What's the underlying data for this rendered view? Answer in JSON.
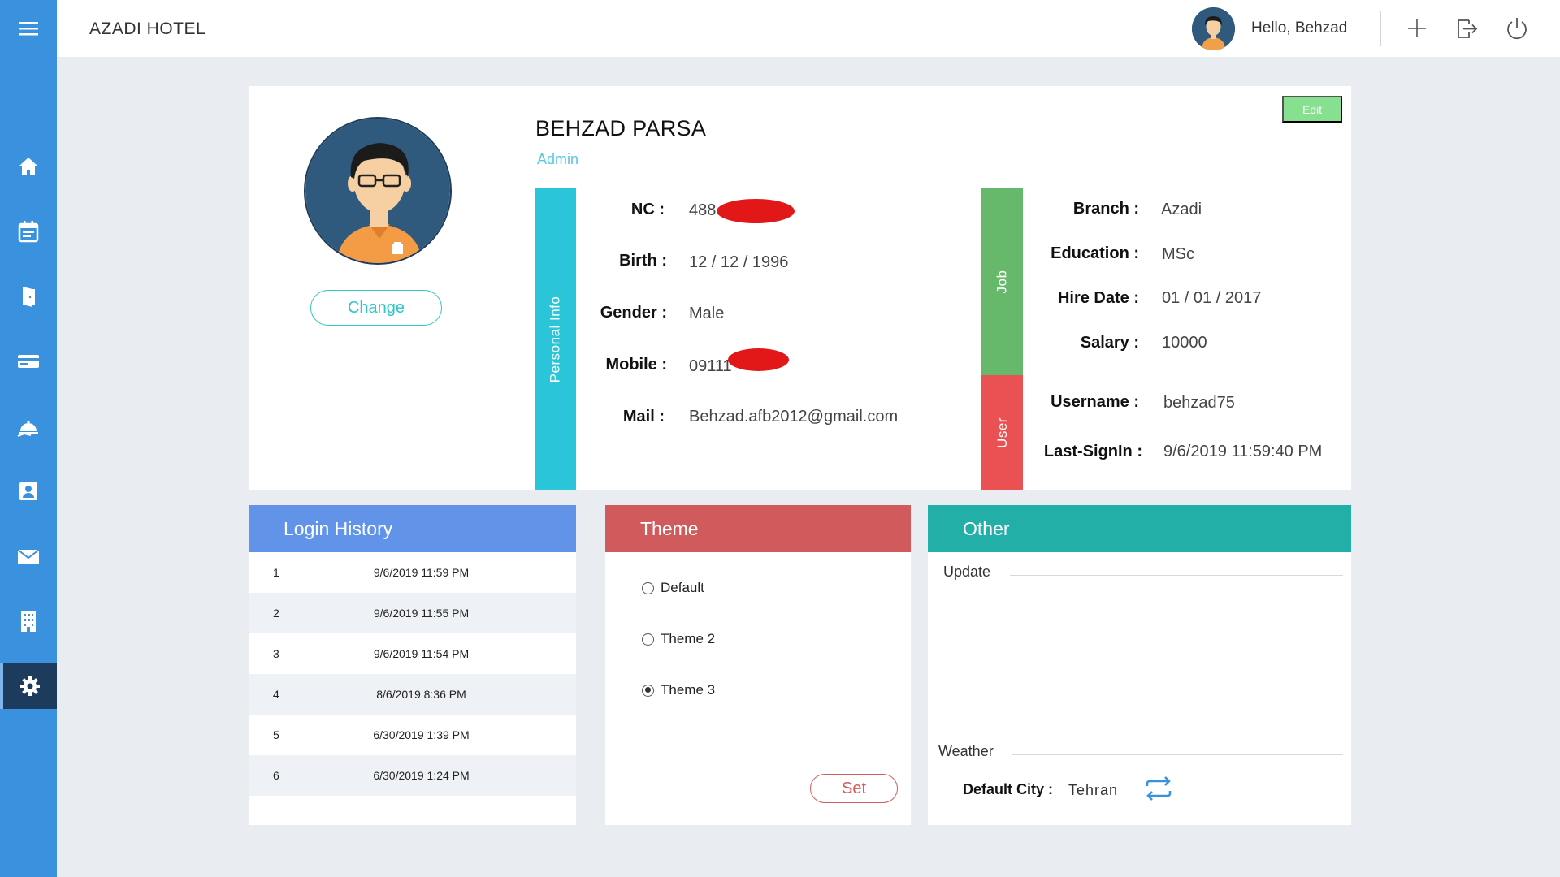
{
  "app": {
    "title": "AZADI HOTEL"
  },
  "header": {
    "greeting": "Hello, Behzad"
  },
  "sidebar": {
    "items": [
      {
        "icon": "home-icon"
      },
      {
        "icon": "calendar-icon"
      },
      {
        "icon": "door-icon"
      },
      {
        "icon": "credit-card-icon"
      },
      {
        "icon": "room-service-icon"
      },
      {
        "icon": "contact-icon"
      },
      {
        "icon": "mail-icon"
      },
      {
        "icon": "building-icon"
      },
      {
        "icon": "settings-icon",
        "active": true
      }
    ]
  },
  "profile": {
    "name": "BEHZAD PARSA",
    "role": "Admin",
    "change_label": "Change",
    "edit_label": "Edit",
    "bands": {
      "personal": "Personal Info",
      "job": "Job",
      "user": "User"
    },
    "personal": {
      "nc_label": "NC :",
      "nc_value": "488",
      "birth_label": "Birth :",
      "birth_value": "12 / 12 / 1996",
      "gender_label": "Gender :",
      "gender_value": "Male",
      "mobile_label": "Mobile :",
      "mobile_value": "09111",
      "mail_label": "Mail :",
      "mail_value": "Behzad.afb2012@gmail.com"
    },
    "job": {
      "branch_label": "Branch :",
      "branch_value": "Azadi",
      "education_label": "Education :",
      "education_value": "MSc",
      "hire_label": "Hire Date :",
      "hire_value": "01 / 01 / 2017",
      "salary_label": "Salary :",
      "salary_value": "10000"
    },
    "user": {
      "username_label": "Username :",
      "username_value": "behzad75",
      "signin_label": "Last-SignIn :",
      "signin_value": "9/6/2019 11:59:40 PM"
    }
  },
  "login_history": {
    "title": "Login History",
    "rows": [
      {
        "num": "1",
        "date": "9/6/2019 11:59 PM"
      },
      {
        "num": "2",
        "date": "9/6/2019 11:55 PM"
      },
      {
        "num": "3",
        "date": "9/6/2019 11:54 PM"
      },
      {
        "num": "4",
        "date": "8/6/2019 8:36 PM"
      },
      {
        "num": "5",
        "date": "6/30/2019 1:39 PM"
      },
      {
        "num": "6",
        "date": "6/30/2019 1:24 PM"
      }
    ]
  },
  "theme": {
    "title": "Theme",
    "options": [
      {
        "label": "Default",
        "checked": false
      },
      {
        "label": "Theme 2",
        "checked": false
      },
      {
        "label": "Theme 3",
        "checked": true
      }
    ],
    "set_label": "Set"
  },
  "other": {
    "title": "Other",
    "update_title": "Update",
    "weather_title": "Weather",
    "city_label": "Default City :",
    "city_value": "Tehran"
  },
  "colors": {
    "sidebar": "#3a92df",
    "login_header": "#6194e8",
    "theme_header": "#d05a5c",
    "other_header": "#22afa7",
    "personal_band": "#2ac5d8",
    "job_band": "#66b96a",
    "user_band": "#ea5152",
    "edit_button": "#86e08f"
  }
}
